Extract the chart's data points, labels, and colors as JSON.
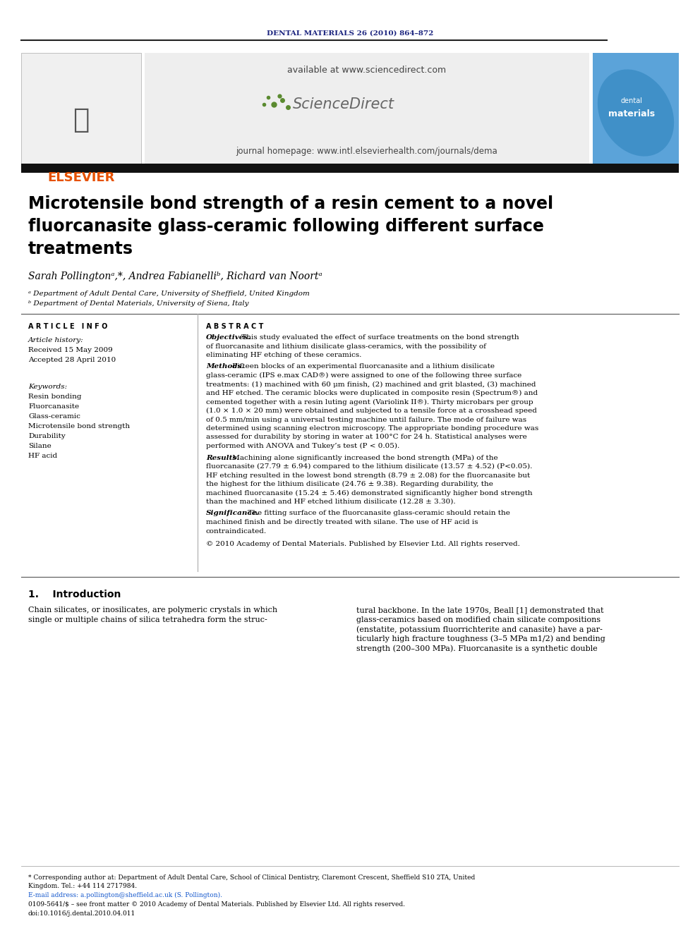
{
  "journal_header": "DENTAL MATERIALS 26 (2010) 864–872",
  "journal_header_color": "#1a237e",
  "available_text": "available at www.sciencedirect.com",
  "journal_homepage": "journal homepage: www.intl.elsevierhealth.com/journals/dema",
  "elsevier_text": "ELSEVIER",
  "elsevier_color": "#e65100",
  "sciencedirect_text": "ScienceDirect",
  "article_title_line1": "Microtensile bond strength of a resin cement to a novel",
  "article_title_line2": "fluorcanasite glass-ceramic following different surface",
  "article_title_line3": "treatments",
  "authors": "Sarah Pollingtonᵃ,*, Andrea Fabianelliᵇ, Richard van Noortᵃ",
  "affil_a": "ᵃ Department of Adult Dental Care, University of Sheffield, United Kingdom",
  "affil_b": "ᵇ Department of Dental Materials, University of Siena, Italy",
  "section_article_info": "A R T I C L E   I N F O",
  "article_history_label": "Article history:",
  "received": "Received 15 May 2009",
  "accepted": "Accepted 28 April 2010",
  "keywords_label": "Keywords:",
  "keywords": [
    "Resin bonding",
    "Fluorcanasite",
    "Glass-ceramic",
    "Microtensile bond strength",
    "Durability",
    "Silane",
    "HF acid"
  ],
  "section_abstract": "A B S T R A C T",
  "abstract_objectives_label": "Objectives.",
  "abstract_objectives": " This study evaluated the effect of surface treatments on the bond strength of fluorcanasite and lithium disilicate glass-ceramics, with the possibility of eliminating HF etching of these ceramics.",
  "abstract_methods_label": "Methods.",
  "abstract_methods": " Fifteen blocks of an experimental fluorcanasite and a lithium disilicate glass-ceramic (IPS e.max CAD®) were assigned to one of the following three surface treatments: (1) machined with 60 μm finish, (2) machined and grit blasted, (3) machined and HF etched. The ceramic blocks were duplicated in composite resin (Spectrum®) and cemented together with a resin luting agent (Variolink II®). Thirty microbars per group (1.0 × 1.0 × 20 mm) were obtained and subjected to a tensile force at a crosshead speed of 0.5 mm/min using a universal testing machine until failure. The mode of failure was determined using scanning electron microscopy. The appropriate bonding procedure was assessed for durability by storing in water at 100°C for 24 h. Statistical analyses were performed with ANOVA and Tukey’s test (P < 0.05).",
  "abstract_results_label": "Results.",
  "abstract_results": " Machining alone significantly increased the bond strength (MPa) of the fluorcanasite (27.79 ± 6.94) compared to the lithium disilicate (13.57 ± 4.52) (P<0.05). HF etching resulted in the lowest bond strength (8.79 ± 2.08) for the fluorcanasite but the highest for the lithium disilicate (24.76 ± 9.38). Regarding durability, the machined fluorcanasite (15.24 ± 5.46) demonstrated significantly higher bond strength than the machined and HF etched lithium disilicate (12.28 ± 3.30).",
  "abstract_significance_label": "Significance.",
  "abstract_significance": " The fitting surface of the fluorcanasite glass-ceramic should retain the machined finish and be directly treated with silane. The use of HF acid is contraindicated.",
  "copyright_abstract": "© 2010 Academy of Dental Materials. Published by Elsevier Ltd. All rights reserved.",
  "intro_section": "1.    Introduction",
  "intro_left_lines": [
    "Chain silicates, or inosilicates, are polymeric crystals in which",
    "single or multiple chains of silica tetrahedra form the struc-"
  ],
  "intro_right_lines": [
    "tural backbone. In the late 1970s, Beall [1] demonstrated that",
    "glass-ceramics based on modified chain silicate compositions",
    "(enstatite, potassium fluorrichterite and canasite) have a par-",
    "ticularly high fracture toughness (3–5 MPa m1/2) and bending",
    "strength (200–300 MPa). Fluorcanasite is a synthetic double"
  ],
  "footnote_star": "* Corresponding author at: Department of Adult Dental Care, School of Clinical Dentistry, Claremont Crescent, Sheffield S10 2TA, United",
  "footnote_star2": "Kingdom. Tel.: +44 114 2717984.",
  "footnote_email": "E-mail address: a.pollington@sheffield.ac.uk (S. Pollington).",
  "footnote_issn": "0109-5641/$ – see front matter © 2010 Academy of Dental Materials. Published by Elsevier Ltd. All rights reserved.",
  "footnote_doi": "doi:10.1016/j.dental.2010.04.011",
  "bg_color": "#ffffff",
  "text_color": "#000000"
}
